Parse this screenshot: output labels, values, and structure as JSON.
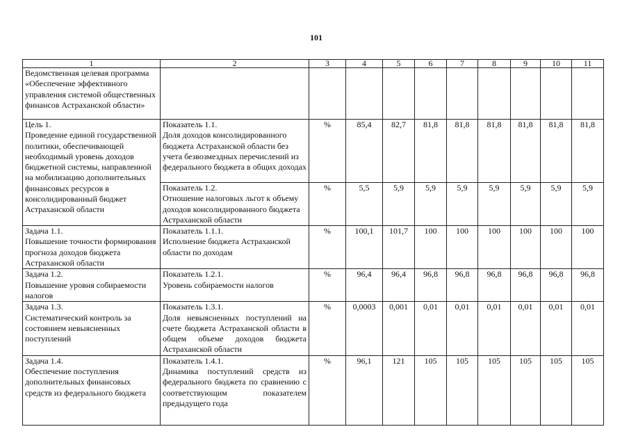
{
  "page_number": "101",
  "headers": [
    "1",
    "2",
    "3",
    "4",
    "5",
    "6",
    "7",
    "8",
    "9",
    "10",
    "11"
  ],
  "program": "Ведомственная целевая программа «Обеспечение эффективного управления системой общественных финансов Астраханской области»",
  "goal": {
    "text": "Цель 1.\nПроведение единой государственной политики, обеспечивающей необходимый уровень доходов бюджетной системы, направленной на мобилизацию дополнительных финансовых ресурсов в консолидированный бюджет Астраханской области",
    "indicators": [
      {
        "name": "Показатель 1.1.\nДоля доходов консолидированного бюджета Астраханской области без учета безвозмездных перечислений из федерального бюджета в общих доходах",
        "unit": "%",
        "values": [
          "85,4",
          "82,7",
          "81,8",
          "81,8",
          "81,8",
          "81,8",
          "81,8",
          "81,8"
        ]
      },
      {
        "name": "Показатель 1.2.\nОтношение налоговых льгот к объему доходов консолидированного бюджета Астраханской области",
        "unit": "%",
        "values": [
          "5,5",
          "5,9",
          "5,9",
          "5,9",
          "5,9",
          "5,9",
          "5,9",
          "5,9"
        ]
      }
    ]
  },
  "tasks": [
    {
      "task": "Задача 1.1.\nПовышение точности формирования прогноза доходов бюджета Астраханской области",
      "indicator": "Показатель 1.1.1.\nИсполнение бюджета Астраханской области по доходам",
      "unit": "%",
      "values": [
        "100,1",
        "101,7",
        "100",
        "100",
        "100",
        "100",
        "100",
        "100"
      ]
    },
    {
      "task": "Задача 1.2.\nПовышение уровня собираемости налогов",
      "indicator": "Показатель 1.2.1.\nУровень собираемости налогов",
      "unit": "%",
      "values": [
        "96,4",
        "96,4",
        "96,8",
        "96,8",
        "96,8",
        "96,8",
        "96,8",
        "96,8"
      ]
    },
    {
      "task": "Задача 1.3.\nСистематический контроль за состоянием невыясненных поступлений",
      "indicator": "Показатель 1.3.1.\nДоля невыясненных поступлений на счете бюджета Астраханской области в общем объеме доходов бюджета Астраханской области",
      "unit": "%",
      "values": [
        "0,0003",
        "0,001",
        "0,01",
        "0,01",
        "0,01",
        "0,01",
        "0,01",
        "0,01"
      ]
    },
    {
      "task": "Задача 1.4.\nОбеспечение поступления дополнительных финансовых средств из федерального бюджета",
      "indicator": "Показатель 1.4.1.\nДинамика поступлений средств из федерального бюджета по сравнению с соответствующим показателем предыдущего года",
      "unit": "%",
      "values": [
        "96,1",
        "121",
        "105",
        "105",
        "105",
        "105",
        "105",
        "105"
      ]
    }
  ]
}
